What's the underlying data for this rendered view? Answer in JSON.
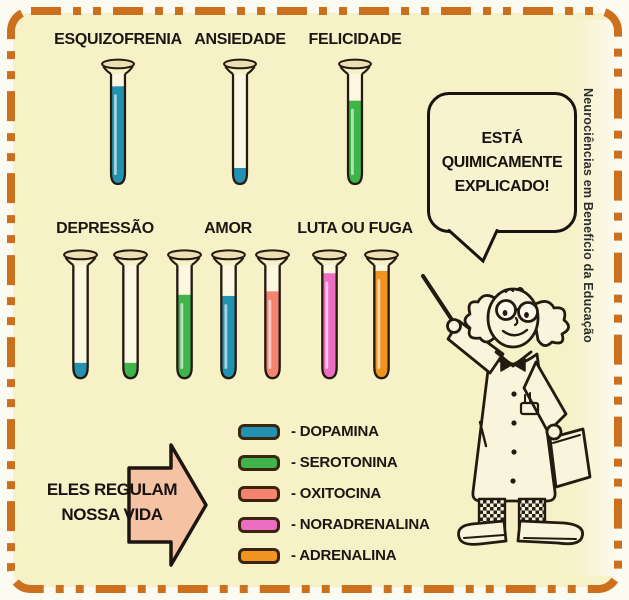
{
  "palette": {
    "panel_bg": "#f7f1c8",
    "outside_bg": "#fcfbf2",
    "border_orange": "#cd701d",
    "ink": "#221a10",
    "tube_lip": "#ecdfb2",
    "tube_interior": "#fbf7e1",
    "arrow_fill": "#f5c3a4"
  },
  "colors": {
    "dopamine": "#2291b2",
    "serotonin": "#3eb44a",
    "oxytocin": "#f48370",
    "noradrenaline": "#ec6ec2",
    "adrenaline": "#f0931f"
  },
  "tube_groups": [
    {
      "label": "ESQUIZOFRENIA",
      "tubes": [
        {
          "substance": "dopamine",
          "fill_pct": 90
        }
      ]
    },
    {
      "label": "ANSIEDADE",
      "tubes": [
        {
          "substance": "dopamine",
          "fill_pct": 16
        }
      ]
    },
    {
      "label": "FELICIDADE",
      "tubes": [
        {
          "substance": "serotonin",
          "fill_pct": 77
        }
      ]
    },
    {
      "label": "DEPRESSÃO",
      "tubes": [
        {
          "substance": "dopamine",
          "fill_pct": 15
        },
        {
          "substance": "serotonin",
          "fill_pct": 15
        }
      ]
    },
    {
      "label": "AMOR",
      "tubes": [
        {
          "substance": "serotonin",
          "fill_pct": 75
        },
        {
          "substance": "dopamine",
          "fill_pct": 74
        },
        {
          "substance": "oxytocin",
          "fill_pct": 78
        }
      ]
    },
    {
      "label": "LUTA OU FUGA",
      "tubes": [
        {
          "substance": "noradrenaline",
          "fill_pct": 94
        },
        {
          "substance": "adrenaline",
          "fill_pct": 96
        }
      ]
    }
  ],
  "legend": {
    "items": [
      {
        "substance": "dopamine",
        "label": "- DOPAMINA"
      },
      {
        "substance": "serotonin",
        "label": "- SEROTONINA"
      },
      {
        "substance": "oxytocin",
        "label": "- OXITOCINA"
      },
      {
        "substance": "noradrenaline",
        "label": "- NORADRENALINA"
      },
      {
        "substance": "adrenaline",
        "label": "- ADRENALINA"
      }
    ]
  },
  "speech_bubble": {
    "line1": "ESTÁ",
    "line2": "QUIMICAMENTE",
    "line3": "EXPLICADO!"
  },
  "arrow": {
    "line1": "ELES REGULAM",
    "line2": "NOSSA VIDA"
  },
  "side_text": "Neurociências em Benefício da Educação"
}
